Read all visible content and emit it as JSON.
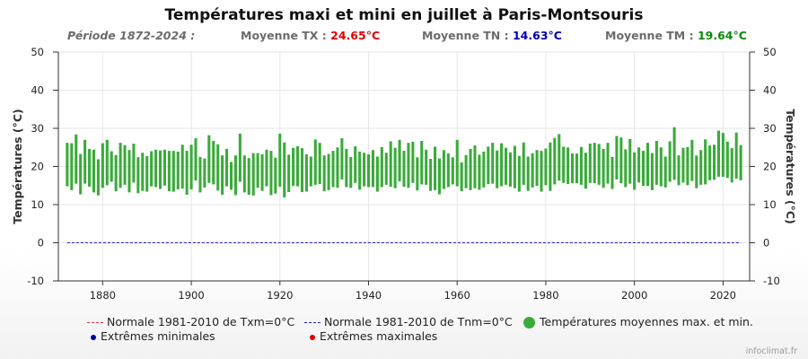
{
  "header": {
    "title": "Températures maxi et mini en juillet à Paris-Montsouris",
    "period": "Période 1872-2024 :",
    "tx_label": "Moyenne TX : ",
    "tx_value": "24.65°C",
    "tn_label": "Moyenne TN : ",
    "tn_value": "14.63°C",
    "tm_label": "Moyenne TM : ",
    "tm_value": "19.64°C"
  },
  "legend": {
    "normal_txm": "Normale 1981-2010 de Txm=0°C",
    "normal_tnm": "Normale 1981-2010 de Tnm=0°C",
    "mean_range": "Températures moyennes max. et min.",
    "extreme_min": "Extrêmes minimales",
    "extreme_max": "Extrêmes maximales"
  },
  "credit": "infoclimat.fr",
  "colors": {
    "bars": "#3aaa3a",
    "normal_txm": "#e03030",
    "normal_tnm": "#2020c0",
    "extreme_min": "#0000a0",
    "extreme_max": "#e00000",
    "grid": "#e6e6e6"
  },
  "chart_data": {
    "type": "bar",
    "subtype": "floating-range",
    "title": "Températures maxi et mini en juillet à Paris-Montsouris",
    "ylabel_left": "Températures (°C)",
    "ylabel_right": "Températures (°C)",
    "ylim": [
      -10,
      50
    ],
    "yticks": [
      -10,
      0,
      10,
      20,
      30,
      40,
      50
    ],
    "xlim": [
      1870,
      2026
    ],
    "xticks": [
      1880,
      1900,
      1920,
      1940,
      1960,
      1980,
      2000,
      2020
    ],
    "grid": true,
    "legend_position": "bottom",
    "normals": {
      "txm": 0,
      "tnm": 0,
      "from": 1872,
      "to": 2024
    },
    "years": [
      1872,
      1873,
      1874,
      1875,
      1876,
      1877,
      1878,
      1879,
      1880,
      1881,
      1882,
      1883,
      1884,
      1885,
      1886,
      1887,
      1888,
      1889,
      1890,
      1891,
      1892,
      1893,
      1894,
      1895,
      1896,
      1897,
      1898,
      1899,
      1900,
      1901,
      1902,
      1903,
      1904,
      1905,
      1906,
      1907,
      1908,
      1909,
      1910,
      1911,
      1912,
      1913,
      1914,
      1915,
      1916,
      1917,
      1918,
      1919,
      1920,
      1921,
      1922,
      1923,
      1924,
      1925,
      1926,
      1927,
      1928,
      1929,
      1930,
      1931,
      1932,
      1933,
      1934,
      1935,
      1936,
      1937,
      1938,
      1939,
      1940,
      1941,
      1942,
      1943,
      1944,
      1945,
      1946,
      1947,
      1948,
      1949,
      1950,
      1951,
      1952,
      1953,
      1954,
      1955,
      1956,
      1957,
      1958,
      1959,
      1960,
      1961,
      1962,
      1963,
      1964,
      1965,
      1966,
      1967,
      1968,
      1969,
      1970,
      1971,
      1972,
      1973,
      1974,
      1975,
      1976,
      1977,
      1978,
      1979,
      1980,
      1981,
      1982,
      1983,
      1984,
      1985,
      1986,
      1987,
      1988,
      1989,
      1990,
      1991,
      1992,
      1993,
      1994,
      1995,
      1996,
      1997,
      1998,
      1999,
      2000,
      2001,
      2002,
      2003,
      2004,
      2005,
      2006,
      2007,
      2008,
      2009,
      2010,
      2011,
      2012,
      2013,
      2014,
      2015,
      2016,
      2017,
      2018,
      2019,
      2020,
      2021,
      2022,
      2023,
      2024
    ],
    "tmax": [
      26.2,
      26.1,
      28.4,
      23.3,
      27.0,
      24.6,
      24.4,
      21.9,
      26.1,
      27.0,
      24.0,
      23.0,
      26.2,
      25.6,
      24.3,
      26.0,
      22.4,
      23.6,
      22.7,
      24.0,
      24.4,
      24.2,
      24.4,
      24.1,
      24.1,
      23.9,
      25.7,
      24.1,
      25.7,
      27.4,
      22.5,
      22.1,
      28.2,
      26.7,
      25.8,
      22.9,
      24.6,
      21.2,
      22.9,
      28.6,
      22.9,
      22.2,
      23.5,
      23.5,
      23.2,
      24.4,
      24.1,
      22.3,
      28.6,
      26.3,
      23.1,
      24.9,
      25.3,
      24.8,
      23.2,
      22.6,
      27.1,
      26.2,
      22.9,
      23.3,
      24.1,
      25.0,
      27.4,
      24.6,
      22.5,
      25.3,
      23.9,
      23.6,
      23.2,
      24.3,
      22.6,
      25.1,
      23.6,
      26.6,
      24.9,
      27.0,
      24.1,
      26.2,
      26.5,
      22.4,
      26.7,
      24.4,
      22.0,
      25.2,
      22.1,
      24.3,
      23.4,
      22.4,
      27.0,
      21.1,
      23.0,
      24.6,
      25.5,
      23.1,
      23.9,
      25.2,
      26.2,
      24.2,
      26.1,
      24.9,
      23.7,
      25.4,
      22.8,
      26.3,
      22.6,
      23.5,
      24.3,
      24.1,
      24.7,
      26.3,
      27.5,
      28.5,
      25.2,
      25.0,
      23.4,
      23.4,
      25.1,
      23.6,
      26.0,
      26.2,
      25.9,
      24.6,
      26.2,
      22.5,
      28.0,
      27.6,
      24.5,
      27.2,
      23.7,
      25.0,
      24.1,
      26.2,
      23.5,
      26.7,
      25.0,
      22.6,
      26.6,
      30.3,
      22.9,
      24.9,
      25.1,
      27.0,
      22.9,
      24.3,
      27.1,
      25.5,
      25.7,
      29.4,
      28.8,
      26.5,
      24.8,
      28.9,
      25.6,
      25.6
    ],
    "tmin": [
      14.8,
      13.8,
      15.5,
      12.7,
      15.5,
      14.7,
      13.2,
      12.4,
      14.4,
      15.1,
      16.0,
      13.5,
      14.4,
      15.2,
      13.2,
      15.8,
      13.0,
      13.6,
      13.4,
      14.8,
      14.6,
      14.1,
      15.0,
      13.5,
      13.4,
      14.0,
      14.2,
      12.6,
      14.0,
      16.3,
      13.2,
      14.5,
      15.7,
      15.3,
      13.7,
      12.6,
      14.8,
      13.9,
      12.5,
      16.0,
      13.2,
      12.6,
      12.4,
      14.4,
      13.6,
      14.8,
      12.5,
      12.9,
      14.7,
      11.9,
      13.3,
      14.9,
      14.8,
      13.3,
      13.4,
      14.8,
      15.2,
      15.4,
      13.5,
      13.8,
      14.6,
      14.4,
      16.6,
      14.6,
      14.4,
      15.7,
      13.9,
      14.8,
      14.6,
      14.6,
      13.4,
      14.6,
      15.2,
      14.7,
      14.3,
      16.1,
      14.7,
      14.4,
      15.7,
      13.7,
      15.3,
      15.2,
      13.6,
      13.8,
      12.7,
      14.1,
      14.6,
      15.3,
      14.8,
      13.5,
      14.3,
      13.8,
      14.3,
      13.9,
      14.5,
      15.4,
      15.5,
      14.3,
      14.8,
      15.2,
      14.7,
      14.3,
      13.4,
      15.2,
      13.6,
      14.5,
      14.9,
      13.4,
      15.1,
      13.6,
      15.3,
      16.3,
      15.7,
      15.4,
      15.6,
      15.6,
      15.2,
      14.2,
      15.7,
      15.6,
      15.2,
      14.4,
      15.5,
      14.1,
      16.6,
      15.6,
      14.6,
      15.5,
      13.9,
      15.8,
      14.9,
      14.9,
      13.8,
      15.2,
      14.8,
      14.5,
      16.0,
      16.5,
      15.1,
      15.8,
      15.1,
      16.2,
      14.3,
      15.2,
      15.3,
      16.4,
      16.5,
      17.3,
      17.3,
      17.0,
      15.8,
      16.8,
      16.4,
      16.3
    ]
  }
}
